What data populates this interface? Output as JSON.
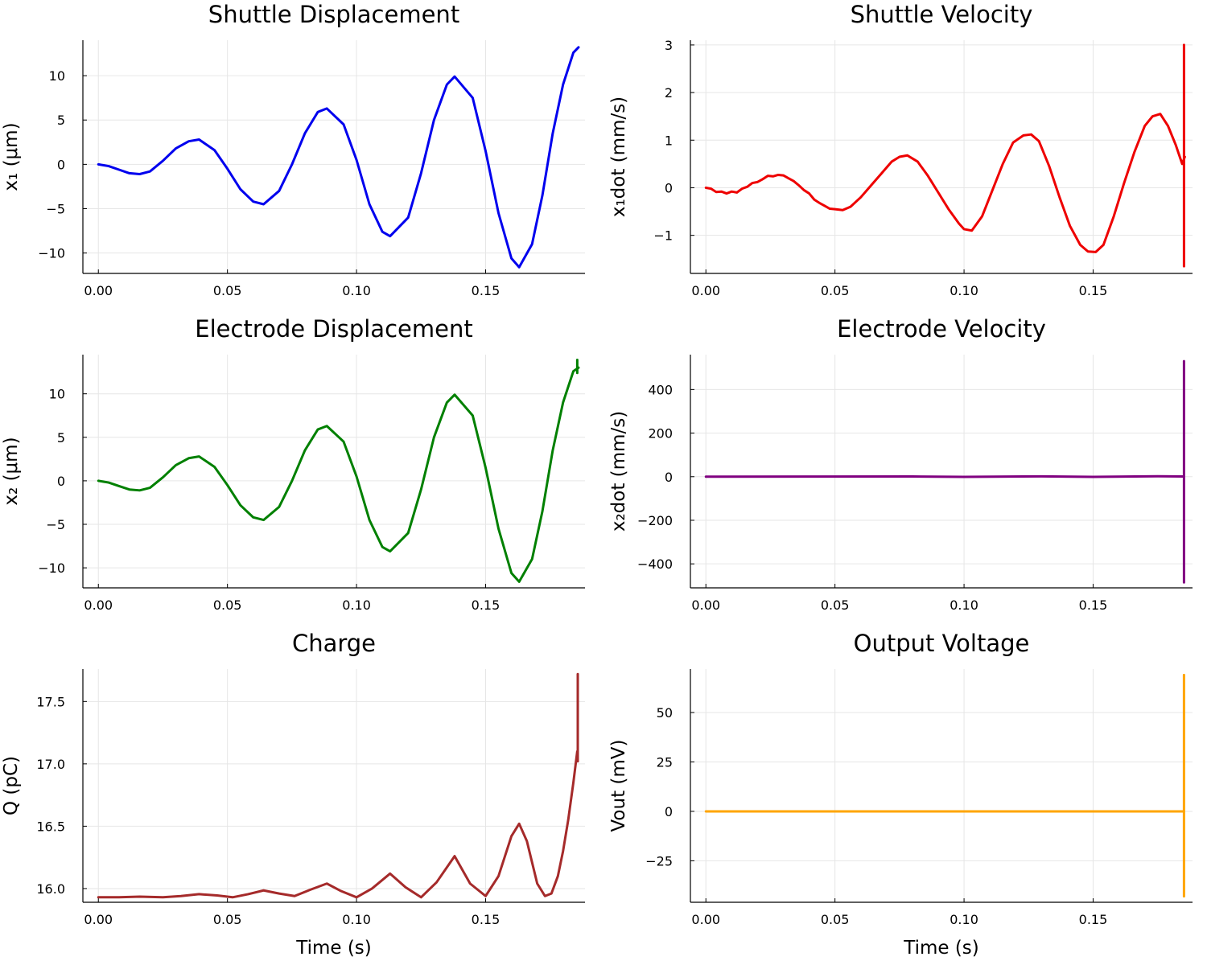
{
  "chart_data": [
    {
      "id": "p1",
      "type": "line",
      "title": "Shuttle Displacement",
      "xlabel": "",
      "ylabel": "x₁ (μm)",
      "xlim": [
        -0.006,
        0.1885
      ],
      "ylim": [
        -12.3,
        14.0
      ],
      "xticks": [
        0.0,
        0.05,
        0.1,
        0.15
      ],
      "xtick_labels": [
        "0.00",
        "0.05",
        "0.10",
        "0.15"
      ],
      "yticks": [
        10,
        5,
        0,
        -5,
        -10
      ],
      "ytick_labels": [
        "10",
        "5",
        "0",
        "−5",
        "−10"
      ],
      "grid": true,
      "series": [
        {
          "color": "#0000ee",
          "x": [
            0.0,
            0.004,
            0.008,
            0.012,
            0.016,
            0.02,
            0.025,
            0.03,
            0.035,
            0.039,
            0.045,
            0.05,
            0.055,
            0.06,
            0.064,
            0.07,
            0.075,
            0.08,
            0.085,
            0.0885,
            0.095,
            0.1,
            0.105,
            0.11,
            0.113,
            0.12,
            0.125,
            0.13,
            0.135,
            0.138,
            0.145,
            0.15,
            0.155,
            0.16,
            0.163,
            0.168,
            0.172,
            0.176,
            0.18,
            0.184,
            0.186
          ],
          "y": [
            0.0,
            -0.2,
            -0.6,
            -1.0,
            -1.1,
            -0.8,
            0.4,
            1.8,
            2.6,
            2.8,
            1.6,
            -0.5,
            -2.8,
            -4.2,
            -4.5,
            -3.0,
            0.0,
            3.5,
            5.9,
            6.3,
            4.5,
            0.5,
            -4.5,
            -7.6,
            -8.1,
            -6.0,
            -1.0,
            5.0,
            9.0,
            9.9,
            7.5,
            1.5,
            -5.5,
            -10.6,
            -11.6,
            -9.0,
            -3.5,
            3.5,
            9.0,
            12.6,
            13.2
          ]
        }
      ]
    },
    {
      "id": "p2",
      "type": "line",
      "title": "Shuttle Velocity",
      "xlabel": "",
      "ylabel": "x₁dot (mm/s)",
      "xlim": [
        -0.006,
        0.1885
      ],
      "ylim": [
        -1.8,
        3.1
      ],
      "xticks": [
        0.0,
        0.05,
        0.1,
        0.15
      ],
      "xtick_labels": [
        "0.00",
        "0.05",
        "0.10",
        "0.15"
      ],
      "yticks": [
        3,
        2,
        1,
        0,
        -1
      ],
      "ytick_labels": [
        "3",
        "2",
        "1",
        "0",
        "−1"
      ],
      "grid": true,
      "series": [
        {
          "color": "#ee0000",
          "x": [
            0.0,
            0.002,
            0.004,
            0.006,
            0.008,
            0.01,
            0.012,
            0.014,
            0.016,
            0.018,
            0.02,
            0.022,
            0.024,
            0.026,
            0.028,
            0.03,
            0.032,
            0.034,
            0.036,
            0.038,
            0.04,
            0.042,
            0.044,
            0.046,
            0.048,
            0.05,
            0.053,
            0.056,
            0.06,
            0.064,
            0.068,
            0.072,
            0.075,
            0.078,
            0.082,
            0.086,
            0.09,
            0.094,
            0.098,
            0.1,
            0.103,
            0.107,
            0.111,
            0.115,
            0.119,
            0.123,
            0.126,
            0.129,
            0.133,
            0.137,
            0.141,
            0.145,
            0.148,
            0.151,
            0.154,
            0.158,
            0.162,
            0.166,
            0.17,
            0.173,
            0.176,
            0.179,
            0.182,
            0.1845,
            0.1855
          ],
          "y": [
            0.0,
            -0.02,
            -0.09,
            -0.08,
            -0.12,
            -0.08,
            -0.1,
            -0.02,
            0.02,
            0.1,
            0.12,
            0.18,
            0.25,
            0.24,
            0.27,
            0.26,
            0.2,
            0.14,
            0.05,
            -0.05,
            -0.12,
            -0.25,
            -0.32,
            -0.38,
            -0.44,
            -0.45,
            -0.47,
            -0.4,
            -0.2,
            0.05,
            0.3,
            0.55,
            0.65,
            0.68,
            0.55,
            0.25,
            -0.1,
            -0.45,
            -0.75,
            -0.87,
            -0.9,
            -0.6,
            -0.05,
            0.5,
            0.95,
            1.1,
            1.12,
            0.98,
            0.45,
            -0.2,
            -0.8,
            -1.2,
            -1.34,
            -1.35,
            -1.2,
            -0.6,
            0.1,
            0.75,
            1.3,
            1.5,
            1.55,
            1.3,
            0.9,
            0.5,
            0.65
          ]
        },
        {
          "color": "#ee0000",
          "x": [
            0.1852,
            0.1852
          ],
          "y": [
            3.0,
            -1.65
          ]
        }
      ]
    },
    {
      "id": "p3",
      "type": "line",
      "title": "Electrode Displacement",
      "xlabel": "",
      "ylabel": "x₂ (μm)",
      "xlim": [
        -0.006,
        0.1885
      ],
      "ylim": [
        -12.3,
        14.5
      ],
      "xticks": [
        0.0,
        0.05,
        0.1,
        0.15
      ],
      "xtick_labels": [
        "0.00",
        "0.05",
        "0.10",
        "0.15"
      ],
      "yticks": [
        10,
        5,
        0,
        -5,
        -10
      ],
      "ytick_labels": [
        "10",
        "5",
        "0",
        "−5",
        "−10"
      ],
      "grid": true,
      "series": [
        {
          "color": "#008000",
          "x": [
            0.0,
            0.004,
            0.008,
            0.012,
            0.016,
            0.02,
            0.025,
            0.03,
            0.035,
            0.039,
            0.045,
            0.05,
            0.055,
            0.06,
            0.064,
            0.07,
            0.075,
            0.08,
            0.085,
            0.0885,
            0.095,
            0.1,
            0.105,
            0.11,
            0.113,
            0.12,
            0.125,
            0.13,
            0.135,
            0.138,
            0.145,
            0.15,
            0.155,
            0.16,
            0.163,
            0.168,
            0.172,
            0.176,
            0.18,
            0.184,
            0.186
          ],
          "y": [
            0.0,
            -0.2,
            -0.6,
            -1.0,
            -1.1,
            -0.8,
            0.4,
            1.8,
            2.6,
            2.8,
            1.6,
            -0.5,
            -2.8,
            -4.2,
            -4.5,
            -3.0,
            0.0,
            3.5,
            5.9,
            6.3,
            4.5,
            0.5,
            -4.5,
            -7.6,
            -8.1,
            -6.0,
            -1.0,
            5.0,
            9.0,
            9.9,
            7.5,
            1.5,
            -5.5,
            -10.6,
            -11.6,
            -9.0,
            -3.5,
            3.5,
            9.0,
            12.6,
            13.0
          ]
        },
        {
          "color": "#008000",
          "x": [
            0.1855,
            0.1855
          ],
          "y": [
            13.9,
            12.4
          ]
        }
      ]
    },
    {
      "id": "p4",
      "type": "line",
      "title": "Electrode Velocity",
      "xlabel": "",
      "ylabel": "x₂dot (mm/s)",
      "xlim": [
        -0.006,
        0.1885
      ],
      "ylim": [
        -510,
        560
      ],
      "xticks": [
        0.0,
        0.05,
        0.1,
        0.15
      ],
      "xtick_labels": [
        "0.00",
        "0.05",
        "0.10",
        "0.15"
      ],
      "yticks": [
        400,
        200,
        0,
        -200,
        -400
      ],
      "ytick_labels": [
        "400",
        "200",
        "0",
        "−200",
        "−400"
      ],
      "grid": true,
      "series": [
        {
          "color": "#800080",
          "x": [
            0.0,
            0.04,
            0.08,
            0.1,
            0.13,
            0.15,
            0.175,
            0.1848
          ],
          "y": [
            0.0,
            0.5,
            1.0,
            -1.0,
            1.5,
            -1.0,
            2.0,
            1.0
          ]
        },
        {
          "color": "#800080",
          "x": [
            0.1852,
            0.1852
          ],
          "y": [
            530,
            -485
          ]
        }
      ]
    },
    {
      "id": "p5",
      "type": "line",
      "title": "Charge",
      "xlabel": "Time (s)",
      "ylabel": "Q (pC)",
      "xlim": [
        -0.006,
        0.1885
      ],
      "ylim": [
        15.89,
        17.76
      ],
      "xticks": [
        0.0,
        0.05,
        0.1,
        0.15
      ],
      "xtick_labels": [
        "0.00",
        "0.05",
        "0.10",
        "0.15"
      ],
      "yticks": [
        17.5,
        17.0,
        16.5,
        16.0
      ],
      "ytick_labels": [
        "17.5",
        "17.0",
        "16.5",
        "16.0"
      ],
      "grid": true,
      "series": [
        {
          "color": "#a52a2a",
          "x": [
            0.0,
            0.008,
            0.016,
            0.025,
            0.032,
            0.039,
            0.046,
            0.052,
            0.058,
            0.064,
            0.07,
            0.076,
            0.082,
            0.0885,
            0.094,
            0.1,
            0.106,
            0.113,
            0.119,
            0.125,
            0.131,
            0.138,
            0.144,
            0.15,
            0.155,
            0.16,
            0.163,
            0.166,
            0.17,
            0.173,
            0.1755,
            0.178,
            0.18,
            0.182,
            0.184,
            0.1855
          ],
          "y": [
            15.93,
            15.93,
            15.935,
            15.93,
            15.94,
            15.955,
            15.945,
            15.93,
            15.955,
            15.985,
            15.96,
            15.94,
            15.99,
            16.04,
            15.98,
            15.93,
            16.0,
            16.12,
            16.01,
            15.93,
            16.05,
            16.26,
            16.04,
            15.94,
            16.1,
            16.42,
            16.52,
            16.38,
            16.04,
            15.94,
            15.96,
            16.1,
            16.3,
            16.55,
            16.85,
            17.1
          ]
        },
        {
          "color": "#a52a2a",
          "x": [
            0.1857,
            0.1857
          ],
          "y": [
            17.72,
            17.02
          ]
        }
      ]
    },
    {
      "id": "p6",
      "type": "line",
      "title": "Output Voltage",
      "xlabel": "Time (s)",
      "ylabel": "Vout (mV)",
      "xlim": [
        -0.006,
        0.1885
      ],
      "ylim": [
        -46,
        72
      ],
      "xticks": [
        0.0,
        0.05,
        0.1,
        0.15
      ],
      "xtick_labels": [
        "0.00",
        "0.05",
        "0.10",
        "0.15"
      ],
      "yticks": [
        50,
        25,
        0,
        -25
      ],
      "ytick_labels": [
        "50",
        "25",
        "0",
        "−25"
      ],
      "grid": true,
      "series": [
        {
          "color": "#ffa500",
          "x": [
            0.0,
            0.05,
            0.1,
            0.15,
            0.1848
          ],
          "y": [
            0.0,
            0.0,
            0.0,
            0.0,
            0.0
          ]
        },
        {
          "color": "#ffa500",
          "x": [
            0.1852,
            0.1852
          ],
          "y": [
            69,
            -43
          ]
        }
      ]
    }
  ]
}
